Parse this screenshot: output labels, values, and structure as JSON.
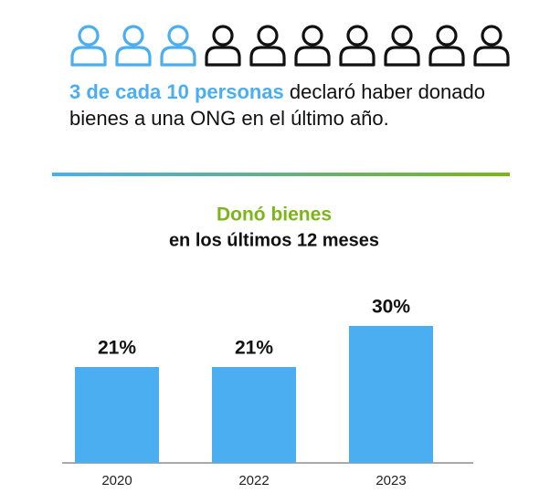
{
  "pictogram": {
    "highlighted": 3,
    "total": 10
  },
  "statement": {
    "highlight": "3 de cada 10 personas",
    "rest": "declaró haber donado bienes a una ONG en el último año."
  },
  "chart_data": {
    "type": "bar",
    "title": "Donó bienes",
    "subtitle": "en los últimos 12 meses",
    "categories": [
      "2020",
      "2022",
      "2023"
    ],
    "values": [
      21,
      21,
      30
    ],
    "value_labels": [
      "21%",
      "21%",
      "30%"
    ],
    "color": "#4aaef0"
  }
}
